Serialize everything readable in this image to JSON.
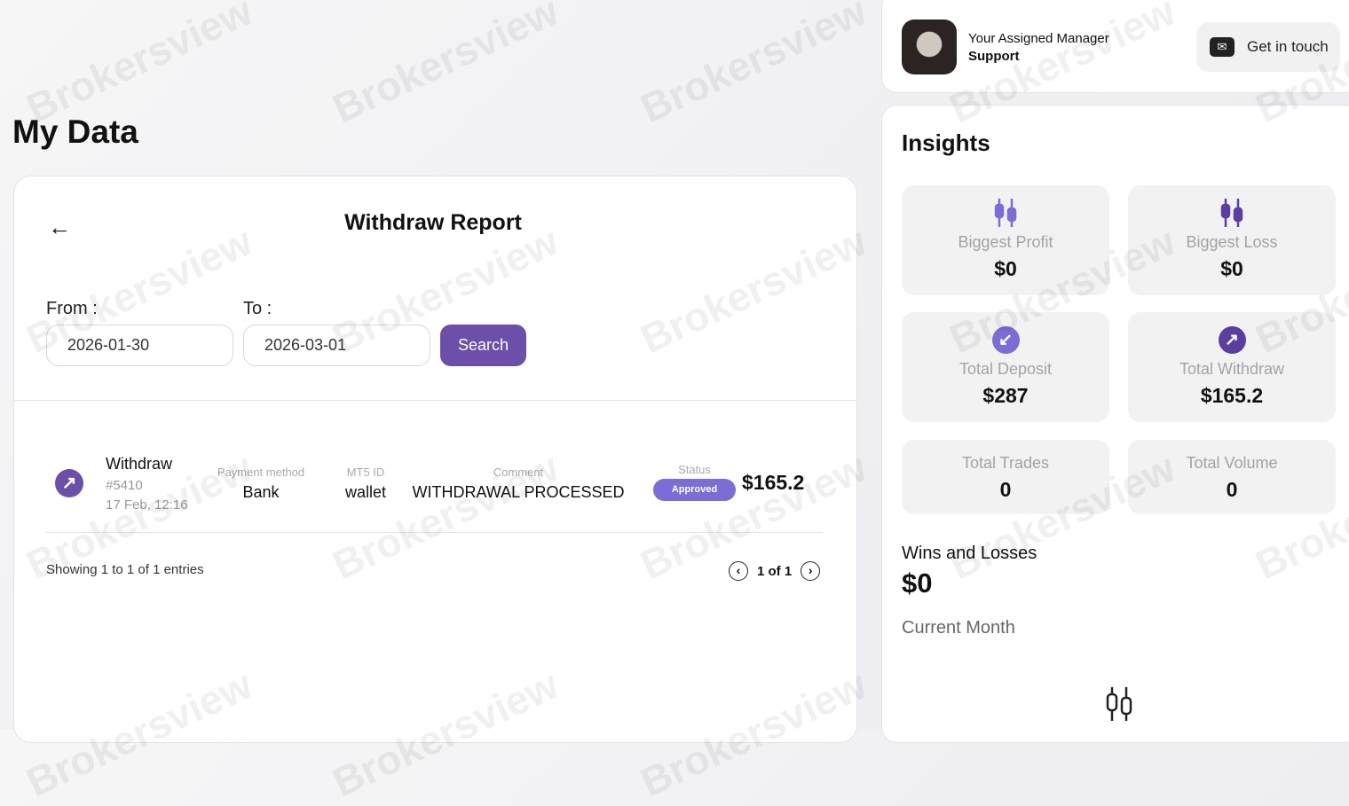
{
  "page_title": "My Data",
  "report": {
    "title": "Withdraw Report",
    "from_label": "From :",
    "to_label": "To :",
    "from_value": "2026-01-30",
    "to_value": "2026-03-01",
    "search_label": "Search"
  },
  "transactions": [
    {
      "type": "Withdraw",
      "id": "#5410",
      "datetime": "17 Feb, 12:16",
      "payment_method_label": "Payment method",
      "payment_method": "Bank",
      "mt5_label": "MT5 ID",
      "mt5_id": "wallet",
      "comment_label": "Comment",
      "comment": "WITHDRAWAL PROCESSED",
      "status_label": "Status",
      "status": "Approved",
      "amount": "$165.2"
    }
  ],
  "pagination": {
    "showing": "Showing 1 to 1 of 1 entries",
    "page": "1 of 1"
  },
  "manager": {
    "title": "Your Assigned Manager",
    "name": "Support",
    "contact_label": "Get in touch"
  },
  "insights": {
    "title": "Insights",
    "tiles": [
      {
        "label": "Biggest Profit",
        "value": "$0",
        "icon": "candlestick-icon"
      },
      {
        "label": "Biggest Loss",
        "value": "$0",
        "icon": "candlestick-icon"
      },
      {
        "label": "Total Deposit",
        "value": "$287",
        "icon": "arrow-down-left-icon"
      },
      {
        "label": "Total Withdraw",
        "value": "$165.2",
        "icon": "arrow-up-right-icon"
      },
      {
        "label": "Total Trades",
        "value": "0"
      },
      {
        "label": "Total Volume",
        "value": "0"
      }
    ],
    "wins_losses_label": "Wins and Losses",
    "wins_losses_value": "$0",
    "period": "Current Month"
  },
  "colors": {
    "accent": "#6b4fa8",
    "accent_light": "#7b6cd6"
  },
  "watermark": "Brokersview"
}
